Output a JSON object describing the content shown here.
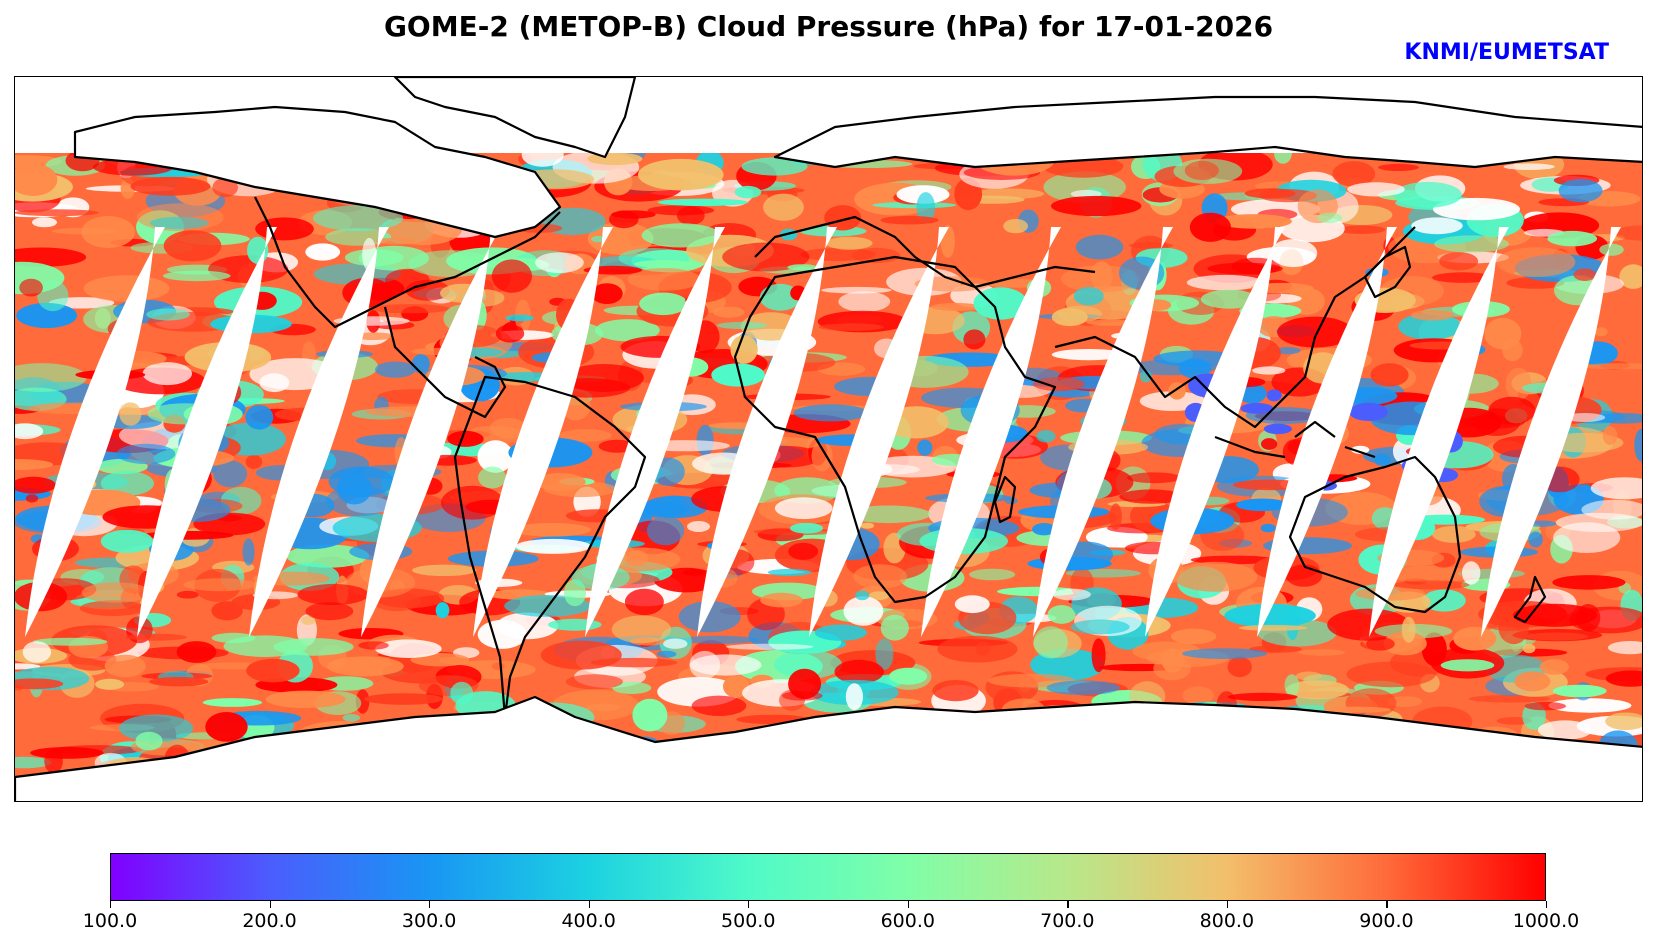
{
  "title": "GOME-2 (METOP-B) Cloud Pressure (hPa) for 17-01-2026",
  "credit": "KNMI/EUMETSAT",
  "credit_color": "#0000ff",
  "map": {
    "projection": "plate-carree",
    "variable": "Cloud Pressure",
    "units": "hPa",
    "date": "17-01-2026",
    "instrument": "GOME-2",
    "platform": "METOP-B",
    "orbit_gap_count": 14,
    "coverage": "daily composite of satellite swaths with diagonal gaps between orbits"
  },
  "colorbar": {
    "min": 100.0,
    "max": 1000.0,
    "colormap": "rainbow",
    "ticks": [
      "100.0",
      "200.0",
      "300.0",
      "400.0",
      "500.0",
      "600.0",
      "700.0",
      "800.0",
      "900.0",
      "1000.0"
    ],
    "stops": [
      "#8000ff",
      "#4b5dfd",
      "#1996f3",
      "#1cd2e1",
      "#4ffac8",
      "#80fea8",
      "#b7e88a",
      "#f3bf6b",
      "#ff6b3a",
      "#ff0000"
    ]
  }
}
